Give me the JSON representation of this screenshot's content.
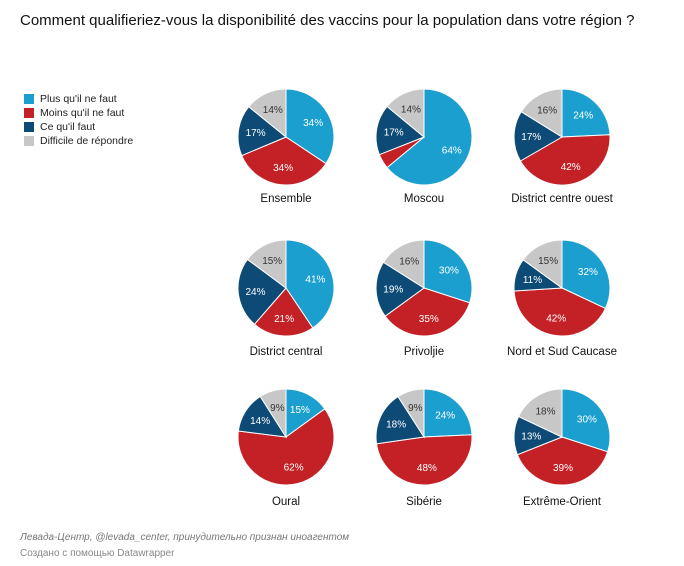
{
  "title": "Comment qualifieriez-vous la disponibilité des vaccins pour la population dans votre région ?",
  "footer": {
    "source": "Левада-Центр, @levada_center, принудительно признан иноагентом",
    "credit": "Создано с помощью Datawrapper"
  },
  "chart_data": {
    "type": "pie",
    "title": "Comment qualifieriez-vous la disponibilité des vaccins pour la population dans votre région ?",
    "legend_placement": "left",
    "categories": [
      "Plus qu'il ne faut",
      "Moins qu'il ne faut",
      "Ce qu'il faut",
      "Difficile de répondre"
    ],
    "colors": [
      "#1a9fcf",
      "#c42126",
      "#0e4a76",
      "#c7c7c7"
    ],
    "charts": [
      {
        "name": "Ensemble",
        "values": [
          34,
          34,
          17,
          14
        ]
      },
      {
        "name": "Moscou",
        "values": [
          64,
          5,
          17,
          14
        ]
      },
      {
        "name": "District centre ouest",
        "values": [
          24,
          42,
          17,
          16
        ]
      },
      {
        "name": "District central",
        "values": [
          41,
          21,
          24,
          15
        ]
      },
      {
        "name": "Privoljie",
        "values": [
          30,
          35,
          19,
          16
        ]
      },
      {
        "name": "Nord et Sud Caucase",
        "values": [
          32,
          42,
          11,
          15
        ]
      },
      {
        "name": "Oural",
        "values": [
          15,
          62,
          14,
          9
        ]
      },
      {
        "name": "Sibérie",
        "values": [
          24,
          48,
          18,
          9
        ]
      },
      {
        "name": "Extrême-Orient",
        "values": [
          30,
          39,
          13,
          18
        ]
      }
    ]
  }
}
